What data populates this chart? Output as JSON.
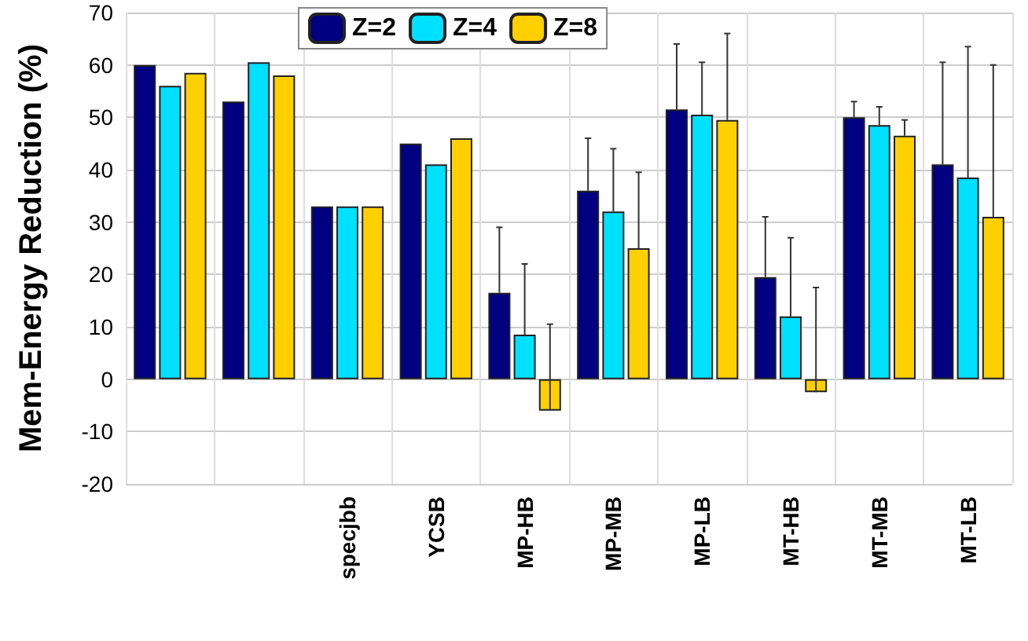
{
  "chart_data": {
    "type": "bar",
    "ylabel": "Mem-Energy Reduction (%)",
    "categories": [
      null,
      null,
      "specjbb",
      "YCSB",
      "MP-HB",
      "MP-MB",
      "MP-LB",
      "MT-HB",
      "MT-MB",
      "MT-LB"
    ],
    "series": [
      {
        "name": "Z=2",
        "color": "#000080",
        "values": [
          60,
          53,
          33,
          45,
          16.5,
          36,
          51.5,
          19.5,
          50,
          41
        ],
        "errors": [
          null,
          null,
          null,
          null,
          [
            16.5,
            29
          ],
          [
            36,
            46
          ],
          [
            51.5,
            64
          ],
          [
            19.5,
            31
          ],
          [
            50,
            53
          ],
          [
            41,
            60.5
          ]
        ]
      },
      {
        "name": "Z=4",
        "color": "#00e0ff",
        "values": [
          56,
          60.5,
          33,
          41,
          8.5,
          32,
          50.5,
          12,
          48.5,
          38.5
        ],
        "errors": [
          null,
          null,
          null,
          null,
          [
            8.5,
            22
          ],
          [
            32,
            44
          ],
          [
            50.5,
            60.5
          ],
          [
            12,
            27
          ],
          [
            48.5,
            52
          ],
          [
            38.5,
            63.5
          ]
        ]
      },
      {
        "name": "Z=8",
        "color": "#ffd000",
        "values": [
          58.5,
          58,
          33,
          46,
          -6,
          25,
          49.5,
          -2.5,
          46.5,
          31
        ],
        "errors": [
          null,
          null,
          null,
          null,
          [
            -6,
            10.5
          ],
          [
            25,
            39.5
          ],
          [
            49.5,
            66
          ],
          [
            -2.5,
            17.5
          ],
          [
            46.5,
            49.5
          ],
          [
            31,
            60
          ]
        ]
      }
    ],
    "ylim": [
      -20,
      70
    ],
    "yticks": [
      -20,
      -10,
      0,
      10,
      20,
      30,
      40,
      50,
      60,
      70
    ],
    "grid": true,
    "legend": "top"
  }
}
